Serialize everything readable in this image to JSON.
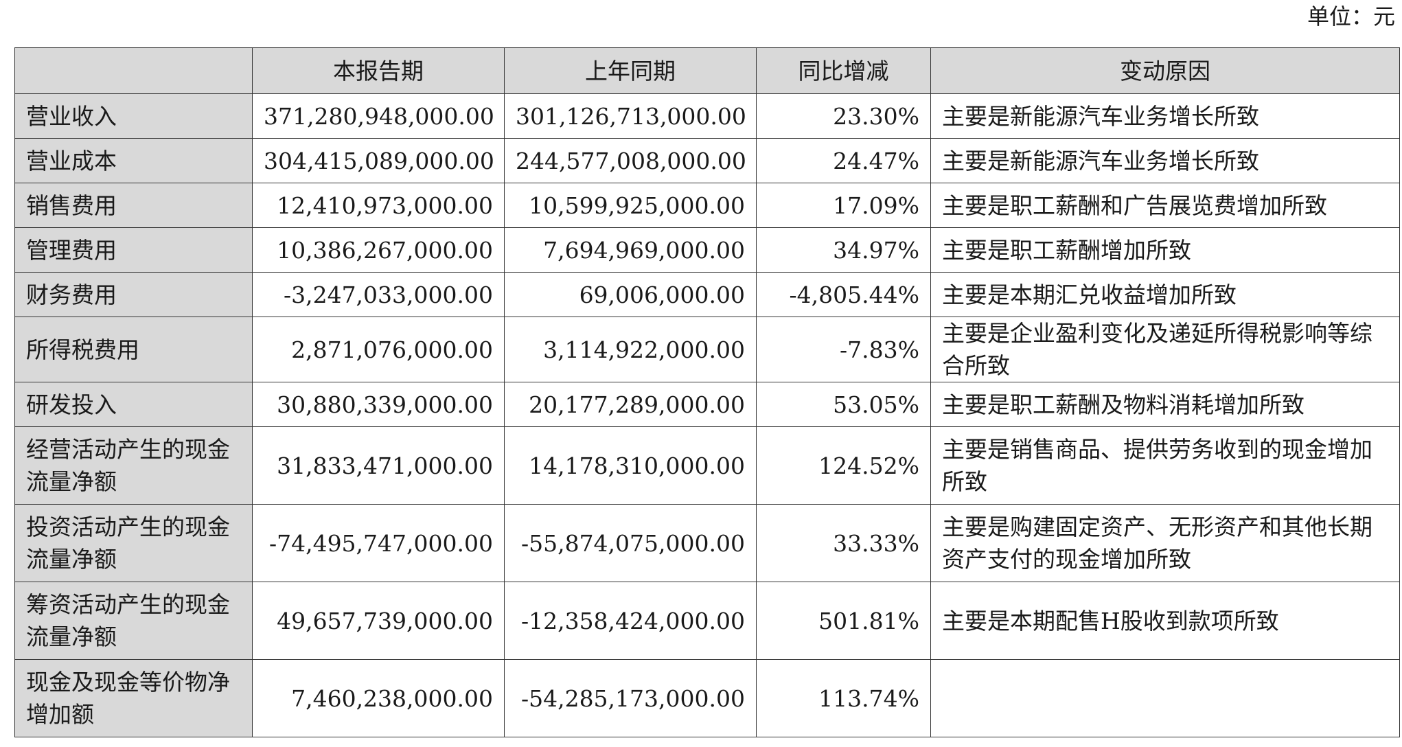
{
  "unit": "单位：元",
  "headers": {
    "item": "",
    "current": "本报告期",
    "previous": "上年同期",
    "change": "同比增减",
    "reason": "变动原因"
  },
  "rows": [
    {
      "item": "营业收入",
      "current": "371,280,948,000.00",
      "previous": "301,126,713,000.00",
      "change": "23.30%",
      "reason": "主要是新能源汽车业务增长所致"
    },
    {
      "item": "营业成本",
      "current": "304,415,089,000.00",
      "previous": "244,577,008,000.00",
      "change": "24.47%",
      "reason": "主要是新能源汽车业务增长所致"
    },
    {
      "item": "销售费用",
      "current": "12,410,973,000.00",
      "previous": "10,599,925,000.00",
      "change": "17.09%",
      "reason": "主要是职工薪酬和广告展览费增加所致"
    },
    {
      "item": "管理费用",
      "current": "10,386,267,000.00",
      "previous": "7,694,969,000.00",
      "change": "34.97%",
      "reason": "主要是职工薪酬增加所致"
    },
    {
      "item": "财务费用",
      "current": "-3,247,033,000.00",
      "previous": "69,006,000.00",
      "change": "-4,805.44%",
      "reason": "主要是本期汇兑收益增加所致"
    },
    {
      "item": "所得税费用",
      "current": "2,871,076,000.00",
      "previous": "3,114,922,000.00",
      "change": "-7.83%",
      "reason": "主要是企业盈利变化及递延所得税影响等综合所致"
    },
    {
      "item": "研发投入",
      "current": "30,880,339,000.00",
      "previous": "20,177,289,000.00",
      "change": "53.05%",
      "reason": "主要是职工薪酬及物料消耗增加所致"
    },
    {
      "item": "经营活动产生的现金流量净额",
      "current": "31,833,471,000.00",
      "previous": "14,178,310,000.00",
      "change": "124.52%",
      "reason": "主要是销售商品、提供劳务收到的现金增加所致"
    },
    {
      "item": "投资活动产生的现金流量净额",
      "current": "-74,495,747,000.00",
      "previous": "-55,874,075,000.00",
      "change": "33.33%",
      "reason": "主要是购建固定资产、无形资产和其他长期资产支付的现金增加所致"
    },
    {
      "item": "筹资活动产生的现金流量净额",
      "current": "49,657,739,000.00",
      "previous": "-12,358,424,000.00",
      "change": "501.81%",
      "reason": "主要是本期配售H股收到款项所致"
    },
    {
      "item": "现金及现金等价物净增加额",
      "current": "7,460,238,000.00",
      "previous": "-54,285,173,000.00",
      "change": "113.74%",
      "reason": ""
    }
  ]
}
